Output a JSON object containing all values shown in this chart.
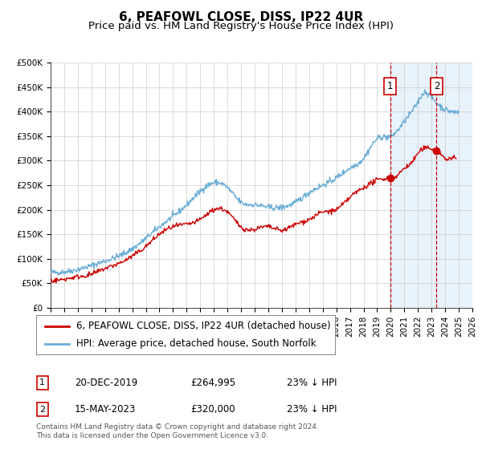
{
  "title": "6, PEAFOWL CLOSE, DISS, IP22 4UR",
  "subtitle": "Price paid vs. HM Land Registry's House Price Index (HPI)",
  "xlim": [
    1995.0,
    2026.0
  ],
  "ylim": [
    0,
    500000
  ],
  "yticks": [
    0,
    50000,
    100000,
    150000,
    200000,
    250000,
    300000,
    350000,
    400000,
    450000,
    500000
  ],
  "ytick_labels": [
    "£0",
    "£50K",
    "£100K",
    "£150K",
    "£200K",
    "£250K",
    "£300K",
    "£350K",
    "£400K",
    "£450K",
    "£500K"
  ],
  "xticks": [
    1995,
    1996,
    1997,
    1998,
    1999,
    2000,
    2001,
    2002,
    2003,
    2004,
    2005,
    2006,
    2007,
    2008,
    2009,
    2010,
    2011,
    2012,
    2013,
    2014,
    2015,
    2016,
    2017,
    2018,
    2019,
    2020,
    2021,
    2022,
    2023,
    2024,
    2025,
    2026
  ],
  "hpi_color": "#6baed6",
  "price_color": "#cc0000",
  "marker1_x": 2019.97,
  "marker1_y": 264995,
  "marker2_x": 2023.37,
  "marker2_y": 320000,
  "vline1_x": 2019.97,
  "vline2_x": 2023.37,
  "shade_start": 2019.97,
  "shade_end": 2026.0,
  "legend_line1": "6, PEAFOWL CLOSE, DISS, IP22 4UR (detached house)",
  "legend_line2": "HPI: Average price, detached house, South Norfolk",
  "annotation1_date": "20-DEC-2019",
  "annotation1_price": "£264,995",
  "annotation1_hpi": "23% ↓ HPI",
  "annotation2_date": "15-MAY-2023",
  "annotation2_price": "£320,000",
  "annotation2_hpi": "23% ↓ HPI",
  "footer": "Contains HM Land Registry data © Crown copyright and database right 2024.\nThis data is licensed under the Open Government Licence v3.0.",
  "background_color": "#ffffff",
  "grid_color": "#cccccc",
  "title_fontsize": 11,
  "subtitle_fontsize": 9.5,
  "tick_fontsize": 7.5,
  "legend_fontsize": 8.5,
  "annotation_fontsize": 8.5,
  "footer_fontsize": 6.5,
  "hpi_key_x": [
    1995,
    1997,
    1999,
    2001,
    2003,
    2005,
    2007,
    2008,
    2009,
    2010,
    2011,
    2012,
    2013,
    2014,
    2015,
    2016,
    2017,
    2018,
    2019,
    2020,
    2021,
    2022,
    2022.5,
    2023,
    2023.5,
    2024,
    2024.5,
    2025.0
  ],
  "hpi_key_y": [
    72000,
    78000,
    95000,
    120000,
    165000,
    210000,
    255000,
    245000,
    215000,
    210000,
    205000,
    205000,
    215000,
    235000,
    250000,
    265000,
    285000,
    305000,
    345000,
    350000,
    380000,
    420000,
    440000,
    430000,
    415000,
    405000,
    400000,
    400000
  ],
  "price_key_x": [
    1995,
    1996,
    1997,
    1998,
    1999,
    2000,
    2001,
    2002,
    2003,
    2004,
    2005,
    2006,
    2007,
    2008,
    2009,
    2010,
    2011,
    2012,
    2013,
    2014,
    2015,
    2016,
    2017,
    2018,
    2019,
    2019.97,
    2020.5,
    2021,
    2021.5,
    2022,
    2022.5,
    2023,
    2023.37,
    2023.8,
    2024,
    2024.5,
    2024.8
  ],
  "price_key_y": [
    55000,
    58000,
    63000,
    68000,
    80000,
    90000,
    105000,
    125000,
    150000,
    165000,
    170000,
    180000,
    200000,
    195000,
    165000,
    160000,
    165000,
    158000,
    170000,
    180000,
    195000,
    200000,
    225000,
    245000,
    260000,
    264995,
    270000,
    285000,
    295000,
    315000,
    325000,
    325000,
    320000,
    310000,
    305000,
    305000,
    305000
  ]
}
